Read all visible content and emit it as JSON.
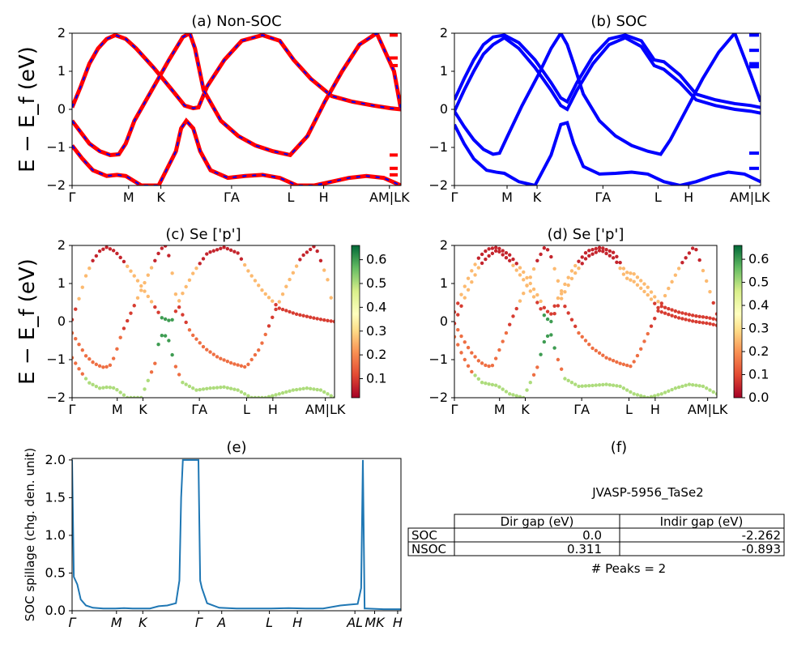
{
  "chart_data": [
    {
      "panel": "a",
      "type": "line",
      "title": "(a) Non-SOC",
      "ylabel": "E − E_f (eV)",
      "ylim": [
        -2,
        2
      ],
      "yticks": [
        "−2",
        "−1",
        "0",
        "1",
        "2"
      ],
      "kpoint_labels": [
        "Γ",
        "M",
        "K",
        "ΓA",
        "L",
        "H",
        "AM|LK"
      ],
      "series_colors": [
        "#ff0000",
        "#0000ff"
      ],
      "style": "red spin-up bands with blue dashed spin-down overlay",
      "bands": [
        {
          "k": [
            0,
            0.05,
            0.1,
            0.15,
            0.2,
            0.25,
            0.31,
            0.37,
            0.47,
            0.57,
            0.65,
            0.7,
            0.73,
            0.78,
            0.88,
            0.98,
            1.1,
            1.2,
            1.28,
            1.32,
            1.38,
            1.5,
            1.62,
            1.74,
            1.84,
            1.9
          ],
          "E": [
            0.05,
            0.6,
            1.2,
            1.6,
            1.85,
            1.95,
            1.85,
            1.6,
            1.1,
            0.55,
            0.1,
            0.03,
            0.05,
            0.6,
            1.3,
            1.8,
            1.95,
            1.8,
            1.3,
            1.1,
            0.8,
            0.35,
            0.2,
            0.1,
            0.03,
            0.0
          ]
        },
        {
          "k": [
            0,
            0.05,
            0.1,
            0.16,
            0.22,
            0.27,
            0.31,
            0.36,
            0.46,
            0.56,
            0.64,
            0.68,
            0.71,
            0.76,
            0.86,
            0.96,
            1.06,
            1.16,
            1.26,
            1.36,
            1.46,
            1.56,
            1.66,
            1.76,
            1.86,
            1.9
          ],
          "E": [
            -0.3,
            -0.6,
            -0.9,
            -1.1,
            -1.2,
            -1.18,
            -0.9,
            -0.3,
            0.5,
            1.3,
            1.9,
            2.0,
            1.6,
            0.5,
            -0.3,
            -0.7,
            -0.95,
            -1.1,
            -1.2,
            -0.7,
            0.2,
            1.0,
            1.7,
            2.0,
            1.0,
            0.0
          ]
        },
        {
          "k": [
            0,
            0.06,
            0.12,
            0.2,
            0.26,
            0.31,
            0.4,
            0.5,
            0.6,
            0.63,
            0.66,
            0.7,
            0.74,
            0.8,
            0.9,
            1.0,
            1.1,
            1.2,
            1.3,
            1.4,
            1.5,
            1.6,
            1.7,
            1.8,
            1.9
          ],
          "E": [
            -0.95,
            -1.3,
            -1.6,
            -1.75,
            -1.72,
            -1.75,
            -2.0,
            -2.0,
            -1.1,
            -0.5,
            -0.3,
            -0.5,
            -1.1,
            -1.6,
            -1.8,
            -1.75,
            -1.72,
            -1.8,
            -2.0,
            -2.0,
            -1.9,
            -1.8,
            -1.75,
            -1.8,
            -2.0
          ]
        }
      ],
      "side_markers": [
        1.95,
        1.35,
        1.15,
        -1.2,
        -1.55,
        -1.72
      ]
    },
    {
      "panel": "b",
      "type": "line",
      "title": "(b) SOC",
      "ylim": [
        -2,
        2
      ],
      "yticks": [
        "−2",
        "−1",
        "0",
        "1",
        "2"
      ],
      "kpoint_labels": [
        "Γ",
        "M",
        "K",
        "ΓA",
        "L",
        "H",
        "AM|LK"
      ],
      "series_colors": [
        "#0000ff"
      ],
      "bands": [
        {
          "k": [
            0,
            0.06,
            0.12,
            0.18,
            0.24,
            0.31,
            0.4,
            0.5,
            0.6,
            0.66,
            0.7,
            0.76,
            0.86,
            0.96,
            1.06,
            1.16,
            1.24,
            1.3,
            1.4,
            1.5,
            1.62,
            1.74,
            1.84,
            1.9
          ],
          "E": [
            0.25,
            0.8,
            1.3,
            1.7,
            1.9,
            1.95,
            1.75,
            1.3,
            0.7,
            0.3,
            0.2,
            0.7,
            1.4,
            1.85,
            1.95,
            1.8,
            1.3,
            1.25,
            0.9,
            0.4,
            0.25,
            0.15,
            0.1,
            0.05
          ]
        },
        {
          "k": [
            0,
            0.06,
            0.12,
            0.18,
            0.24,
            0.31,
            0.4,
            0.5,
            0.6,
            0.66,
            0.7,
            0.76,
            0.86,
            0.96,
            1.06,
            1.16,
            1.24,
            1.3,
            1.4,
            1.5,
            1.62,
            1.74,
            1.84,
            1.9
          ],
          "E": [
            -0.05,
            0.5,
            1.0,
            1.45,
            1.7,
            1.88,
            1.6,
            1.1,
            0.5,
            0.1,
            0.0,
            0.5,
            1.2,
            1.7,
            1.88,
            1.65,
            1.15,
            1.05,
            0.7,
            0.25,
            0.1,
            0.0,
            -0.05,
            -0.1
          ]
        },
        {
          "k": [
            0,
            0.06,
            0.12,
            0.18,
            0.24,
            0.28,
            0.33,
            0.42,
            0.52,
            0.6,
            0.66,
            0.7,
            0.74,
            0.8,
            0.9,
            1.0,
            1.1,
            1.2,
            1.28,
            1.34,
            1.44,
            1.54,
            1.64,
            1.74,
            1.84,
            1.9
          ],
          "E": [
            -0.05,
            -0.45,
            -0.8,
            -1.05,
            -1.18,
            -1.15,
            -0.7,
            0.1,
            0.9,
            1.6,
            2.0,
            1.7,
            1.2,
            0.4,
            -0.3,
            -0.7,
            -0.95,
            -1.1,
            -1.18,
            -0.8,
            0.0,
            0.8,
            1.5,
            2.0,
            0.9,
            0.2
          ]
        },
        {
          "k": [
            0,
            0.06,
            0.12,
            0.2,
            0.26,
            0.31,
            0.4,
            0.5,
            0.6,
            0.66,
            0.7,
            0.74,
            0.8,
            0.9,
            1.0,
            1.1,
            1.2,
            1.3,
            1.4,
            1.5,
            1.6,
            1.7,
            1.8,
            1.9
          ],
          "E": [
            -0.4,
            -0.9,
            -1.3,
            -1.6,
            -1.65,
            -1.68,
            -1.9,
            -2.0,
            -1.2,
            -0.4,
            -0.35,
            -0.9,
            -1.5,
            -1.7,
            -1.68,
            -1.65,
            -1.7,
            -1.9,
            -2.0,
            -1.9,
            -1.75,
            -1.65,
            -1.7,
            -1.9
          ]
        }
      ],
      "side_markers": [
        1.95,
        1.55,
        1.2,
        1.12,
        -1.15,
        -1.55
      ]
    },
    {
      "panel": "c",
      "type": "scatter",
      "title": "(c)  Se ['p']",
      "ylabel": "E − E_f (eV)",
      "ylim": [
        -2,
        2
      ],
      "yticks": [
        "−2",
        "−1",
        "0",
        "1",
        "2"
      ],
      "kpoint_labels": [
        "Γ",
        "M",
        "K",
        "ΓA",
        "L",
        "H",
        "AM|LK"
      ],
      "colorbar": {
        "cmap": "RdYlGn",
        "range": [
          0.02,
          0.66
        ],
        "ticks": [
          "0.1",
          "0.2",
          "0.3",
          "0.4",
          "0.5",
          "0.6"
        ]
      }
    },
    {
      "panel": "d",
      "type": "scatter",
      "title": "(d) Se ['p']",
      "ylim": [
        -2,
        2
      ],
      "yticks": [
        "−2",
        "−1",
        "0",
        "1",
        "2"
      ],
      "kpoint_labels": [
        "Γ",
        "M",
        "K",
        "ΓA",
        "L",
        "H",
        "AM|LK"
      ],
      "colorbar": {
        "cmap": "RdYlGn",
        "range": [
          0.0,
          0.66
        ],
        "ticks": [
          "0.0",
          "0.1",
          "0.2",
          "0.3",
          "0.4",
          "0.5",
          "0.6"
        ]
      }
    },
    {
      "panel": "e",
      "type": "line",
      "title": "(e)",
      "ylabel": "SOC spillage (chg. den. unit)",
      "ylim": [
        0,
        2.02
      ],
      "yticks": [
        "0.0",
        "0.5",
        "1.0",
        "1.5",
        "2.0"
      ],
      "kpoint_labels": [
        "Γ",
        "M",
        "K",
        "Γ",
        "A",
        "L",
        "H",
        "AL",
        "MK",
        "H"
      ],
      "series_colors": [
        "#1f77b4"
      ],
      "x": [
        0,
        0.01,
        0.03,
        0.05,
        0.08,
        0.12,
        0.18,
        0.25,
        0.3,
        0.35,
        0.4,
        0.45,
        0.5,
        0.55,
        0.6,
        0.62,
        0.63,
        0.64,
        0.65,
        0.72,
        0.73,
        0.74,
        0.75,
        0.78,
        0.85,
        0.95,
        1.05,
        1.15,
        1.25,
        1.35,
        1.45,
        1.55,
        1.6,
        1.65,
        1.67,
        1.68,
        1.69,
        1.7,
        1.8,
        1.9
      ],
      "values": [
        2.0,
        0.45,
        0.35,
        0.15,
        0.07,
        0.04,
        0.03,
        0.03,
        0.035,
        0.03,
        0.03,
        0.03,
        0.06,
        0.07,
        0.1,
        0.4,
        1.5,
        2.0,
        2.0,
        2.0,
        2.0,
        0.4,
        0.3,
        0.1,
        0.04,
        0.03,
        0.03,
        0.03,
        0.035,
        0.03,
        0.03,
        0.07,
        0.08,
        0.09,
        0.3,
        2.0,
        0.03,
        0.03,
        0.02,
        0.02
      ]
    }
  ],
  "table": {
    "title": "(f)",
    "caption": "JVASP-5956_TaSe2",
    "col_labels": [
      "Dir gap (eV)",
      "Indir gap (eV)"
    ],
    "rows": [
      {
        "label": "SOC",
        "dir": "0.0",
        "indir": "-2.262"
      },
      {
        "label": "NSOC",
        "dir": "0.311",
        "indir": "-0.893"
      }
    ],
    "footer": "# Peaks = 2"
  }
}
